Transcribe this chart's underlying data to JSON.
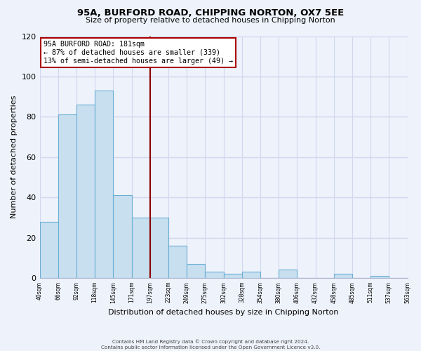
{
  "title": "95A, BURFORD ROAD, CHIPPING NORTON, OX7 5EE",
  "subtitle": "Size of property relative to detached houses in Chipping Norton",
  "xlabel": "Distribution of detached houses by size in Chipping Norton",
  "ylabel": "Number of detached properties",
  "bar_values": [
    28,
    81,
    86,
    93,
    41,
    30,
    30,
    16,
    7,
    3,
    2,
    3,
    0,
    4,
    0,
    0,
    2,
    0,
    1
  ],
  "bin_labels": [
    "40sqm",
    "66sqm",
    "92sqm",
    "118sqm",
    "145sqm",
    "171sqm",
    "197sqm",
    "223sqm",
    "249sqm",
    "275sqm",
    "302sqm",
    "328sqm",
    "354sqm",
    "380sqm",
    "406sqm",
    "432sqm",
    "458sqm",
    "485sqm",
    "511sqm",
    "537sqm",
    "563sqm"
  ],
  "bar_color": "#c8dff0",
  "bar_edge_color": "#6aafd4",
  "vline_color": "#8b0000",
  "vline_x_index": 6,
  "annotation_title": "95A BURFORD ROAD: 181sqm",
  "annotation_line1": "← 87% of detached houses are smaller (339)",
  "annotation_line2": "13% of semi-detached houses are larger (49) →",
  "annotation_box_color": "#ffffff",
  "annotation_box_edge_color": "#aa0000",
  "ylim": [
    0,
    120
  ],
  "yticks": [
    0,
    20,
    40,
    60,
    80,
    100,
    120
  ],
  "footer1": "Contains HM Land Registry data © Crown copyright and database right 2024.",
  "footer2": "Contains public sector information licensed under the Open Government Licence v3.0.",
  "background_color": "#eef2fb",
  "grid_color": "#d0d8ef",
  "spine_color": "#b0b8d0"
}
